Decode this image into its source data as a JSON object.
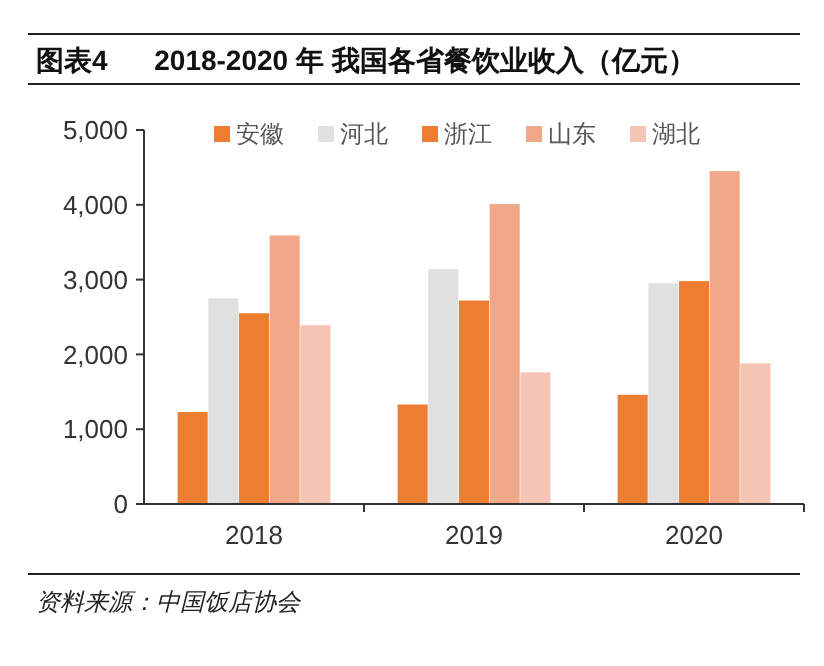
{
  "chart_data": {
    "type": "bar",
    "title": "图表4      2018-2020 年 我国各省餐饮业收入（亿元）",
    "categories": [
      "2018",
      "2019",
      "2020"
    ],
    "series": [
      {
        "name": "安徽",
        "color": "#ed7d31",
        "values": [
          1230,
          1330,
          1460
        ]
      },
      {
        "name": "河北",
        "color": "#e0e0e0",
        "values": [
          2750,
          3140,
          2950
        ]
      },
      {
        "name": "浙江",
        "color": "#ed7d31",
        "values": [
          2550,
          2720,
          2980
        ]
      },
      {
        "name": "山东",
        "color": "#f0a889",
        "values": [
          3590,
          4010,
          4450
        ]
      },
      {
        "name": "湖北",
        "color": "#f5c4b4",
        "values": [
          2390,
          1760,
          1880
        ]
      }
    ],
    "ylim": [
      0,
      5000
    ],
    "yticks": [
      {
        "value": 0,
        "label": "0"
      },
      {
        "value": 1000,
        "label": "1,000"
      },
      {
        "value": 2000,
        "label": "2,000"
      },
      {
        "value": 3000,
        "label": "3,000"
      },
      {
        "value": 4000,
        "label": "4,000"
      },
      {
        "value": 5000,
        "label": "5,000"
      }
    ],
    "legend": "top",
    "annotations": [
      "资料来源：中国饭店协会"
    ]
  }
}
